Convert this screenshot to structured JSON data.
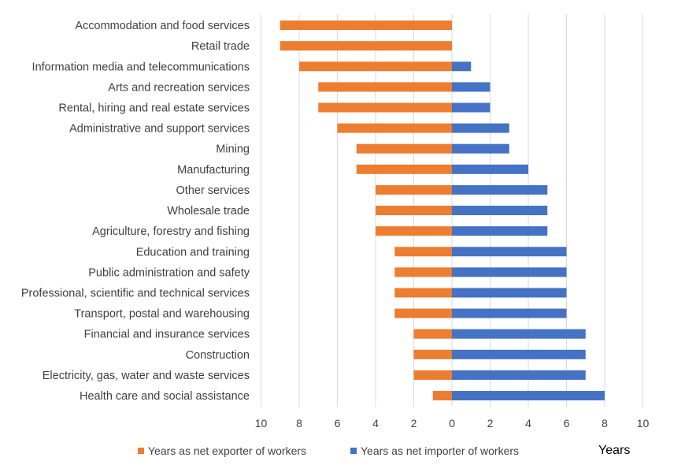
{
  "chart_data": {
    "type": "bar",
    "orientation": "horizontal",
    "layout": "diverging",
    "categories": [
      "Accommodation and food services",
      "Retail trade",
      "Information media and telecommunications",
      "Arts and recreation services",
      "Rental, hiring and real estate services",
      "Administrative and support services",
      "Mining",
      "Manufacturing",
      "Other services",
      "Wholesale trade",
      "Agriculture, forestry and fishing",
      "Education and training",
      "Public administration and safety",
      "Professional, scientific and technical services",
      "Transport, postal and warehousing",
      "Financial and insurance services",
      "Construction",
      "Electricity, gas, water and waste services",
      "Health care and social assistance"
    ],
    "series": [
      {
        "name": "Years as net exporter of workers",
        "color": "#ED7D31",
        "direction": "left",
        "values": [
          9,
          9,
          8,
          7,
          7,
          6,
          5,
          5,
          4,
          4,
          4,
          3,
          3,
          3,
          3,
          2,
          2,
          2,
          1
        ]
      },
      {
        "name": "Years as net importer of workers",
        "color": "#4472C4",
        "direction": "right",
        "values": [
          0,
          0,
          1,
          2,
          2,
          3,
          3,
          4,
          5,
          5,
          5,
          6,
          6,
          6,
          6,
          7,
          7,
          7,
          8
        ]
      }
    ],
    "xlim": [
      -10,
      10
    ],
    "xticks": [
      "10",
      "8",
      "6",
      "4",
      "2",
      "0",
      "2",
      "4",
      "6",
      "8",
      "10"
    ],
    "xlabel": "Years",
    "title": "",
    "grid": "vertical",
    "legend_position": "bottom"
  }
}
